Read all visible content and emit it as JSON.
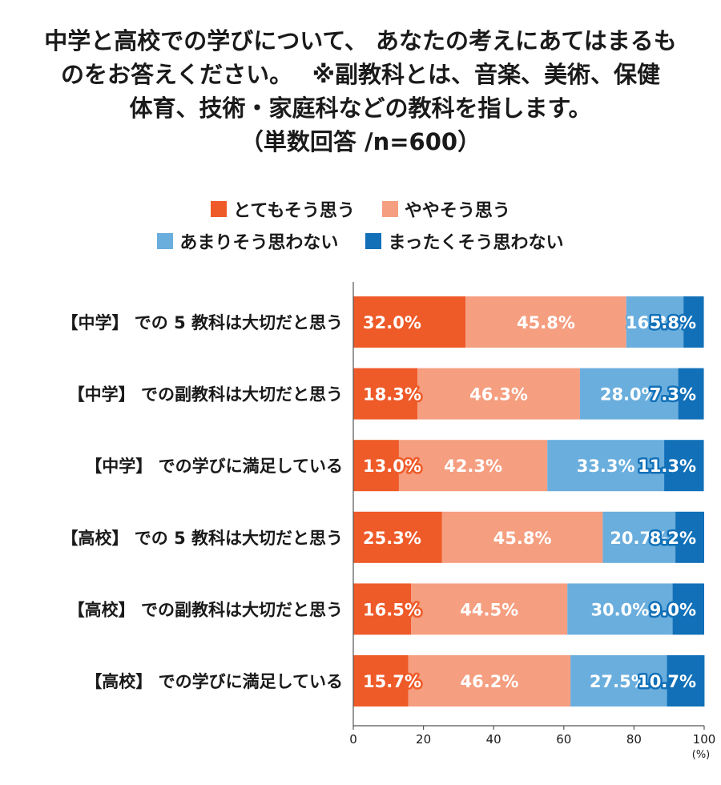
{
  "chart_data": {
    "type": "bar",
    "orientation": "horizontal",
    "stacked": true,
    "title_lines": [
      "中学と高校での学びについて、 あなたの考えにあてはまるも",
      "のをお答えください。　 ※副教科とは、音楽、美術、保健",
      "体育、技術・家庭科などの教科を指します。",
      "（単数回答 /n=600）"
    ],
    "categories": [
      "【中学】 での 5 教科は大切だと思う",
      "【中学】 での副教科は大切だと思う",
      "【中学】 での学びに満足している",
      "【高校】 での 5 教科は大切だと思う",
      "【高校】 での副教科は大切だと思う",
      "【高校】 での学びに満足している"
    ],
    "series": [
      {
        "name": "とてもそう思う",
        "color": "#ee5a28",
        "values": [
          32.0,
          18.3,
          13.0,
          25.3,
          16.5,
          15.7
        ]
      },
      {
        "name": "ややそう思う",
        "color": "#f59e80",
        "values": [
          45.8,
          46.3,
          42.3,
          45.8,
          44.5,
          46.2
        ]
      },
      {
        "name": "あまりそう思わない",
        "color": "#6aaedd",
        "values": [
          16.3,
          28.0,
          33.3,
          20.7,
          30.0,
          27.5
        ]
      },
      {
        "name": "まったくそう思わない",
        "color": "#1170b8",
        "values": [
          5.8,
          7.3,
          11.3,
          8.2,
          9.0,
          10.7
        ]
      }
    ],
    "value_labels": [
      [
        "32.0%",
        "45.8%",
        "16.3%",
        "5.8%"
      ],
      [
        "18.3%",
        "46.3%",
        "28.0%",
        "7.3%"
      ],
      [
        "13.0%",
        "42.3%",
        "33.3%",
        "11.3%"
      ],
      [
        "25.3%",
        "45.8%",
        "20.7%",
        "8.2%"
      ],
      [
        "16.5%",
        "44.5%",
        "30.0%",
        "9.0%"
      ],
      [
        "15.7%",
        "46.2%",
        "27.5%",
        "10.7%"
      ]
    ],
    "xlim": [
      0,
      100
    ],
    "xticks": [
      "0",
      "20",
      "40",
      "60",
      "80",
      "100"
    ],
    "x_unit": "(%)",
    "legend_placement": "top",
    "grid": false
  }
}
